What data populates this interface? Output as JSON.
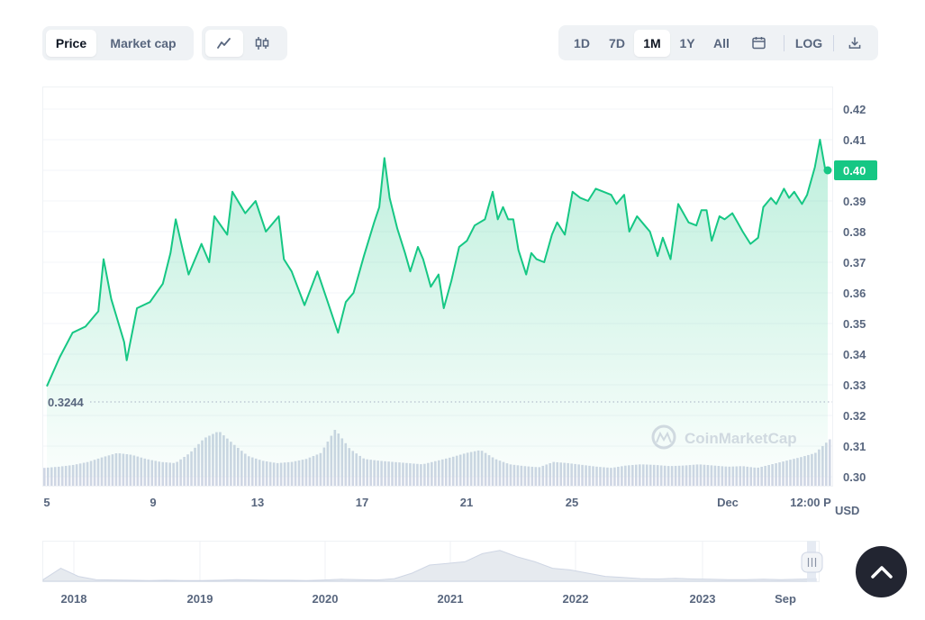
{
  "toolbar": {
    "metric_tabs": [
      {
        "label": "Price",
        "active": true
      },
      {
        "label": "Market cap",
        "active": false
      }
    ],
    "chart_type_buttons": [
      {
        "icon": "line-chart-icon",
        "active": true
      },
      {
        "icon": "candlestick-icon",
        "active": false
      }
    ],
    "range_buttons": [
      {
        "label": "1D",
        "active": false
      },
      {
        "label": "7D",
        "active": false
      },
      {
        "label": "1M",
        "active": true
      },
      {
        "label": "1Y",
        "active": false
      },
      {
        "label": "All",
        "active": false
      }
    ],
    "calendar_icon": "calendar-icon",
    "log_label": "LOG",
    "download_icon": "download-icon"
  },
  "watermark": "CoinMarketCap",
  "currency_label": "USD",
  "colors": {
    "line": "#16c784",
    "area_top": "#16c784",
    "volume": "#cfd6e4",
    "nav_fill": "#e6eaef",
    "badge": "#16c784"
  },
  "chart_data": {
    "type": "area",
    "y_ticks": [
      "0.42",
      "0.41",
      "0.40",
      "0.39",
      "0.38",
      "0.37",
      "0.36",
      "0.35",
      "0.34",
      "0.33",
      "0.32",
      "0.31",
      "0.30"
    ],
    "ylim": [
      0.3,
      0.42
    ],
    "x_ticks": [
      "5",
      "9",
      "13",
      "17",
      "21",
      "25",
      "Dec",
      "12:00 P"
    ],
    "reference_line": {
      "label": "0.3244",
      "value": 0.3244
    },
    "current_price_label": "0.40",
    "price_series": [
      [
        0,
        0.3295
      ],
      [
        0.5,
        0.339
      ],
      [
        1,
        0.347
      ],
      [
        1.5,
        0.349
      ],
      [
        2,
        0.354
      ],
      [
        2.2,
        0.371
      ],
      [
        2.5,
        0.358
      ],
      [
        3,
        0.344
      ],
      [
        3.1,
        0.338
      ],
      [
        3.5,
        0.355
      ],
      [
        4,
        0.357
      ],
      [
        4.5,
        0.363
      ],
      [
        4.8,
        0.373
      ],
      [
        5,
        0.384
      ],
      [
        5.3,
        0.373
      ],
      [
        5.5,
        0.366
      ],
      [
        6,
        0.376
      ],
      [
        6.3,
        0.37
      ],
      [
        6.5,
        0.385
      ],
      [
        7,
        0.379
      ],
      [
        7.2,
        0.393
      ],
      [
        7.7,
        0.386
      ],
      [
        8.1,
        0.39
      ],
      [
        8.5,
        0.38
      ],
      [
        9,
        0.385
      ],
      [
        9.2,
        0.371
      ],
      [
        9.5,
        0.367
      ],
      [
        10,
        0.356
      ],
      [
        10.5,
        0.367
      ],
      [
        10.9,
        0.357
      ],
      [
        11.3,
        0.347
      ],
      [
        11.6,
        0.357
      ],
      [
        11.9,
        0.36
      ],
      [
        12.3,
        0.372
      ],
      [
        12.7,
        0.383
      ],
      [
        12.9,
        0.388
      ],
      [
        13.1,
        0.404
      ],
      [
        13.3,
        0.391
      ],
      [
        13.6,
        0.381
      ],
      [
        13.9,
        0.373
      ],
      [
        14.1,
        0.367
      ],
      [
        14.4,
        0.375
      ],
      [
        14.6,
        0.371
      ],
      [
        14.9,
        0.362
      ],
      [
        15.2,
        0.366
      ],
      [
        15.4,
        0.355
      ],
      [
        15.7,
        0.364
      ],
      [
        16.0,
        0.375
      ],
      [
        16.3,
        0.377
      ],
      [
        16.6,
        0.382
      ],
      [
        17.0,
        0.384
      ],
      [
        17.3,
        0.393
      ],
      [
        17.5,
        0.384
      ],
      [
        17.7,
        0.388
      ],
      [
        17.9,
        0.384
      ],
      [
        18.1,
        0.384
      ],
      [
        18.3,
        0.374
      ],
      [
        18.6,
        0.366
      ],
      [
        18.8,
        0.373
      ],
      [
        19.0,
        0.371
      ],
      [
        19.3,
        0.37
      ],
      [
        19.6,
        0.379
      ],
      [
        19.8,
        0.383
      ],
      [
        20.1,
        0.379
      ],
      [
        20.4,
        0.393
      ],
      [
        20.7,
        0.391
      ],
      [
        21.0,
        0.39
      ],
      [
        21.3,
        0.394
      ],
      [
        21.6,
        0.393
      ],
      [
        21.9,
        0.392
      ],
      [
        22.1,
        0.389
      ],
      [
        22.4,
        0.392
      ],
      [
        22.6,
        0.38
      ],
      [
        22.9,
        0.385
      ],
      [
        23.2,
        0.382
      ],
      [
        23.4,
        0.38
      ],
      [
        23.7,
        0.372
      ],
      [
        23.9,
        0.378
      ],
      [
        24.2,
        0.371
      ],
      [
        24.5,
        0.389
      ],
      [
        24.7,
        0.386
      ],
      [
        24.9,
        0.383
      ],
      [
        25.2,
        0.382
      ],
      [
        25.4,
        0.387
      ],
      [
        25.6,
        0.387
      ],
      [
        25.8,
        0.377
      ],
      [
        26.1,
        0.385
      ],
      [
        26.3,
        0.384
      ],
      [
        26.6,
        0.386
      ],
      [
        26.8,
        0.383
      ],
      [
        27.0,
        0.38
      ],
      [
        27.3,
        0.376
      ],
      [
        27.6,
        0.378
      ],
      [
        27.8,
        0.388
      ],
      [
        28.1,
        0.391
      ],
      [
        28.3,
        0.389
      ],
      [
        28.6,
        0.394
      ],
      [
        28.8,
        0.391
      ],
      [
        29.0,
        0.393
      ],
      [
        29.3,
        0.389
      ],
      [
        29.5,
        0.392
      ],
      [
        29.8,
        0.401
      ],
      [
        30.0,
        0.41
      ],
      [
        30.2,
        0.4005
      ],
      [
        30.3,
        0.4
      ]
    ],
    "volume_series": [
      0.3,
      0.32,
      0.35,
      0.4,
      0.48,
      0.55,
      0.52,
      0.45,
      0.4,
      0.38,
      0.55,
      0.8,
      0.92,
      0.7,
      0.5,
      0.42,
      0.38,
      0.4,
      0.45,
      0.55,
      0.95,
      0.62,
      0.45,
      0.42,
      0.4,
      0.38,
      0.36,
      0.42,
      0.48,
      0.55,
      0.6,
      0.45,
      0.36,
      0.33,
      0.31,
      0.4,
      0.38,
      0.35,
      0.32,
      0.3,
      0.34,
      0.36,
      0.35,
      0.33,
      0.34,
      0.36,
      0.34,
      0.32,
      0.33,
      0.3,
      0.36,
      0.42,
      0.48,
      0.55,
      0.78
    ]
  },
  "navigator": {
    "year_labels": [
      "2018",
      "2019",
      "2020",
      "2021",
      "2022",
      "2023",
      "Sep"
    ],
    "history_series": [
      0.05,
      0.4,
      0.15,
      0.05,
      0.04,
      0.03,
      0.02,
      0.03,
      0.02,
      0.02,
      0.03,
      0.05,
      0.04,
      0.03,
      0.03,
      0.02,
      0.04,
      0.06,
      0.05,
      0.04,
      0.08,
      0.25,
      0.5,
      0.55,
      0.6,
      0.85,
      0.95,
      0.75,
      0.6,
      0.4,
      0.35,
      0.25,
      0.15,
      0.12,
      0.08,
      0.07,
      0.09,
      0.07,
      0.06,
      0.05,
      0.05,
      0.06,
      0.05,
      0.06,
      0.08
    ],
    "handle_icon": "drag-handle-icon"
  },
  "scroll_top_icon": "chevron-up-icon"
}
